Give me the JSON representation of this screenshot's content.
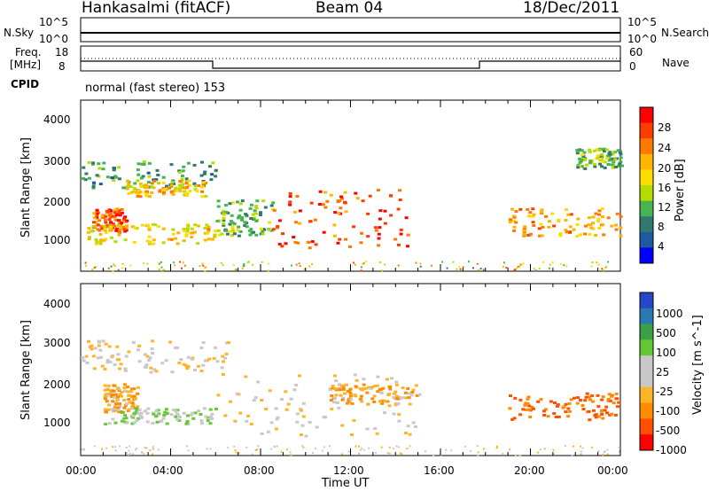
{
  "header": {
    "radar": "Hankasalmi (fitACF)",
    "beam": "Beam 04",
    "date": "18/Dec/2011"
  },
  "sky_panel": {
    "left_label": "N.Sky",
    "right_label": "N.Search",
    "left_ticks": [
      "10^5",
      "10^0"
    ],
    "right_ticks": [
      "10^5",
      "10^0"
    ]
  },
  "freq_panel": {
    "left_label_1": "Freq.",
    "left_label_2": "[MHz]",
    "left_ticks": [
      "18",
      "8"
    ],
    "right_label": "Nave",
    "right_ticks": [
      "60",
      "0"
    ]
  },
  "cpid": {
    "label": "CPID",
    "mode_text": "normal (fast stereo) 153"
  },
  "axes": {
    "ylabel": "Slant Range [km]",
    "xlabel": "Time UT",
    "y_ticks": [
      "4000",
      "3000",
      "2000",
      "1000"
    ],
    "x_ticks": [
      "00:00",
      "04:00",
      "08:00",
      "12:00",
      "16:00",
      "20:00",
      "00:00"
    ]
  },
  "power_colorbar": {
    "label": "Power [dB]",
    "ticks": [
      "28",
      "24",
      "20",
      "16",
      "12",
      "8",
      "4"
    ],
    "colors": [
      "#ff0000",
      "#ff3c00",
      "#ff7800",
      "#ffb400",
      "#ffdc00",
      "#b4dc00",
      "#46b450",
      "#32786e",
      "#1e5aa0",
      "#0000ff"
    ]
  },
  "velocity_colorbar": {
    "label": "Velocity [m s^-1]",
    "ticks": [
      "1000",
      "500",
      "100",
      "25",
      "-25",
      "-100",
      "-500",
      "-1000"
    ],
    "colors": [
      "#2846c8",
      "#2878b4",
      "#3ca046",
      "#64c832",
      "#c8c8c8",
      "#c8c8c8",
      "#ffb428",
      "#ff8c00",
      "#ff5000",
      "#ff0000"
    ]
  },
  "chart_data": [
    {
      "type": "heatmap",
      "title": "Power",
      "xlabel": "Time UT",
      "ylabel": "Slant Range [km]",
      "xlim": [
        0,
        24
      ],
      "ylim": [
        180,
        4500
      ],
      "value_label": "Power [dB]",
      "regions": [
        {
          "t": [
            0.0,
            6.0
          ],
          "r": [
            2300,
            3000
          ],
          "value": 10
        },
        {
          "t": [
            2.0,
            5.5
          ],
          "r": [
            2100,
            2500
          ],
          "value": 20
        },
        {
          "t": [
            0.5,
            2.0
          ],
          "r": [
            1200,
            1800
          ],
          "value": 26
        },
        {
          "t": [
            0.2,
            6.0
          ],
          "r": [
            900,
            1400
          ],
          "value": 18
        },
        {
          "t": [
            6.0,
            8.5
          ],
          "r": [
            1100,
            2000
          ],
          "value": 12
        },
        {
          "t": [
            8.5,
            14.5
          ],
          "r": [
            800,
            2300
          ],
          "value": 26
        },
        {
          "t": [
            19.0,
            24.0
          ],
          "r": [
            1100,
            1800
          ],
          "value": 22
        },
        {
          "t": [
            22.0,
            24.0
          ],
          "r": [
            2800,
            3300
          ],
          "value": 12
        }
      ]
    },
    {
      "type": "heatmap",
      "title": "Velocity",
      "xlabel": "Time UT",
      "ylabel": "Slant Range [km]",
      "xlim": [
        0,
        24
      ],
      "ylim": [
        180,
        4500
      ],
      "value_label": "Velocity [m s^-1]",
      "regions": [
        {
          "t": [
            0.0,
            6.5
          ],
          "r": [
            2300,
            3100
          ],
          "value": 0
        },
        {
          "t": [
            6.0,
            15.0
          ],
          "r": [
            700,
            2300
          ],
          "value": 0
        },
        {
          "t": [
            1.0,
            2.5
          ],
          "r": [
            1300,
            2000
          ],
          "value": -100
        },
        {
          "t": [
            1.0,
            6.0
          ],
          "r": [
            1000,
            1400
          ],
          "value": 100
        },
        {
          "t": [
            11.0,
            15.0
          ],
          "r": [
            1500,
            2000
          ],
          "value": -100
        },
        {
          "t": [
            19.0,
            24.0
          ],
          "r": [
            1100,
            1800
          ],
          "value": -500
        }
      ]
    }
  ]
}
